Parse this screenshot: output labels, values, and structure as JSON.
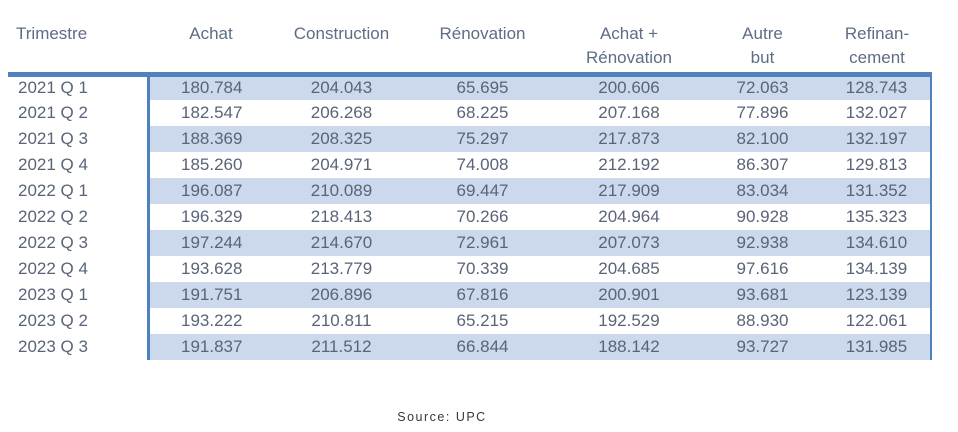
{
  "colors": {
    "accent": "#4f81bd",
    "band": "#ccd8ec",
    "text": "#596477",
    "header_text": "#5e6c84",
    "source_text": "#383838"
  },
  "table": {
    "columns": [
      "Trimestre",
      "Achat",
      "Construction",
      "Rénovation",
      "Achat +\nRénovation",
      "Autre\nbut",
      "Refinan-\ncement"
    ],
    "rows": [
      {
        "label": "2021 Q 1",
        "values": [
          "180.784",
          "204.043",
          "65.695",
          "200.606",
          "72.063",
          "128.743"
        ]
      },
      {
        "label": "2021 Q 2",
        "values": [
          "182.547",
          "206.268",
          "68.225",
          "207.168",
          "77.896",
          "132.027"
        ]
      },
      {
        "label": "2021 Q 3",
        "values": [
          "188.369",
          "208.325",
          "75.297",
          "217.873",
          "82.100",
          "132.197"
        ]
      },
      {
        "label": "2021 Q 4",
        "values": [
          "185.260",
          "204.971",
          "74.008",
          "212.192",
          "86.307",
          "129.813"
        ]
      },
      {
        "label": "2022 Q 1",
        "values": [
          "196.087",
          "210.089",
          "69.447",
          "217.909",
          "83.034",
          "131.352"
        ]
      },
      {
        "label": "2022 Q 2",
        "values": [
          "196.329",
          "218.413",
          "70.266",
          "204.964",
          "90.928",
          "135.323"
        ]
      },
      {
        "label": "2022 Q 3",
        "values": [
          "197.244",
          "214.670",
          "72.961",
          "207.073",
          "92.938",
          "134.610"
        ]
      },
      {
        "label": "2022 Q 4",
        "values": [
          "193.628",
          "213.779",
          "70.339",
          "204.685",
          "97.616",
          "134.139"
        ]
      },
      {
        "label": "2023 Q 1",
        "values": [
          "191.751",
          "206.896",
          "67.816",
          "200.901",
          "93.681",
          "123.139"
        ]
      },
      {
        "label": "2023 Q 2",
        "values": [
          "193.222",
          "210.811",
          "65.215",
          "192.529",
          "88.930",
          "122.061"
        ]
      },
      {
        "label": "2023 Q 3",
        "values": [
          "191.837",
          "211.512",
          "66.844",
          "188.142",
          "93.727",
          "131.985"
        ]
      }
    ]
  },
  "source_note": "Source: UPC",
  "chart_data": {
    "type": "table",
    "title": "",
    "categories": [
      "2021 Q 1",
      "2021 Q 2",
      "2021 Q 3",
      "2021 Q 4",
      "2022 Q 1",
      "2022 Q 2",
      "2022 Q 3",
      "2022 Q 4",
      "2023 Q 1",
      "2023 Q 2",
      "2023 Q 3"
    ],
    "series": [
      {
        "name": "Achat",
        "values": [
          180.784,
          182.547,
          188.369,
          185.26,
          196.087,
          196.329,
          197.244,
          193.628,
          191.751,
          193.222,
          191.837
        ]
      },
      {
        "name": "Construction",
        "values": [
          204.043,
          206.268,
          208.325,
          204.971,
          210.089,
          218.413,
          214.67,
          213.779,
          206.896,
          210.811,
          211.512
        ]
      },
      {
        "name": "Rénovation",
        "values": [
          65.695,
          68.225,
          75.297,
          74.008,
          69.447,
          70.266,
          72.961,
          70.339,
          67.816,
          65.215,
          66.844
        ]
      },
      {
        "name": "Achat + Rénovation",
        "values": [
          200.606,
          207.168,
          217.873,
          212.192,
          217.909,
          204.964,
          207.073,
          204.685,
          200.901,
          192.529,
          188.142
        ]
      },
      {
        "name": "Autre but",
        "values": [
          72.063,
          77.896,
          82.1,
          86.307,
          83.034,
          90.928,
          92.938,
          97.616,
          93.681,
          88.93,
          93.727
        ]
      },
      {
        "name": "Refinancement",
        "values": [
          128.743,
          132.027,
          132.197,
          129.813,
          131.352,
          135.323,
          134.61,
          134.139,
          123.139,
          122.061,
          131.985
        ]
      }
    ],
    "source": "Source: UPC"
  }
}
